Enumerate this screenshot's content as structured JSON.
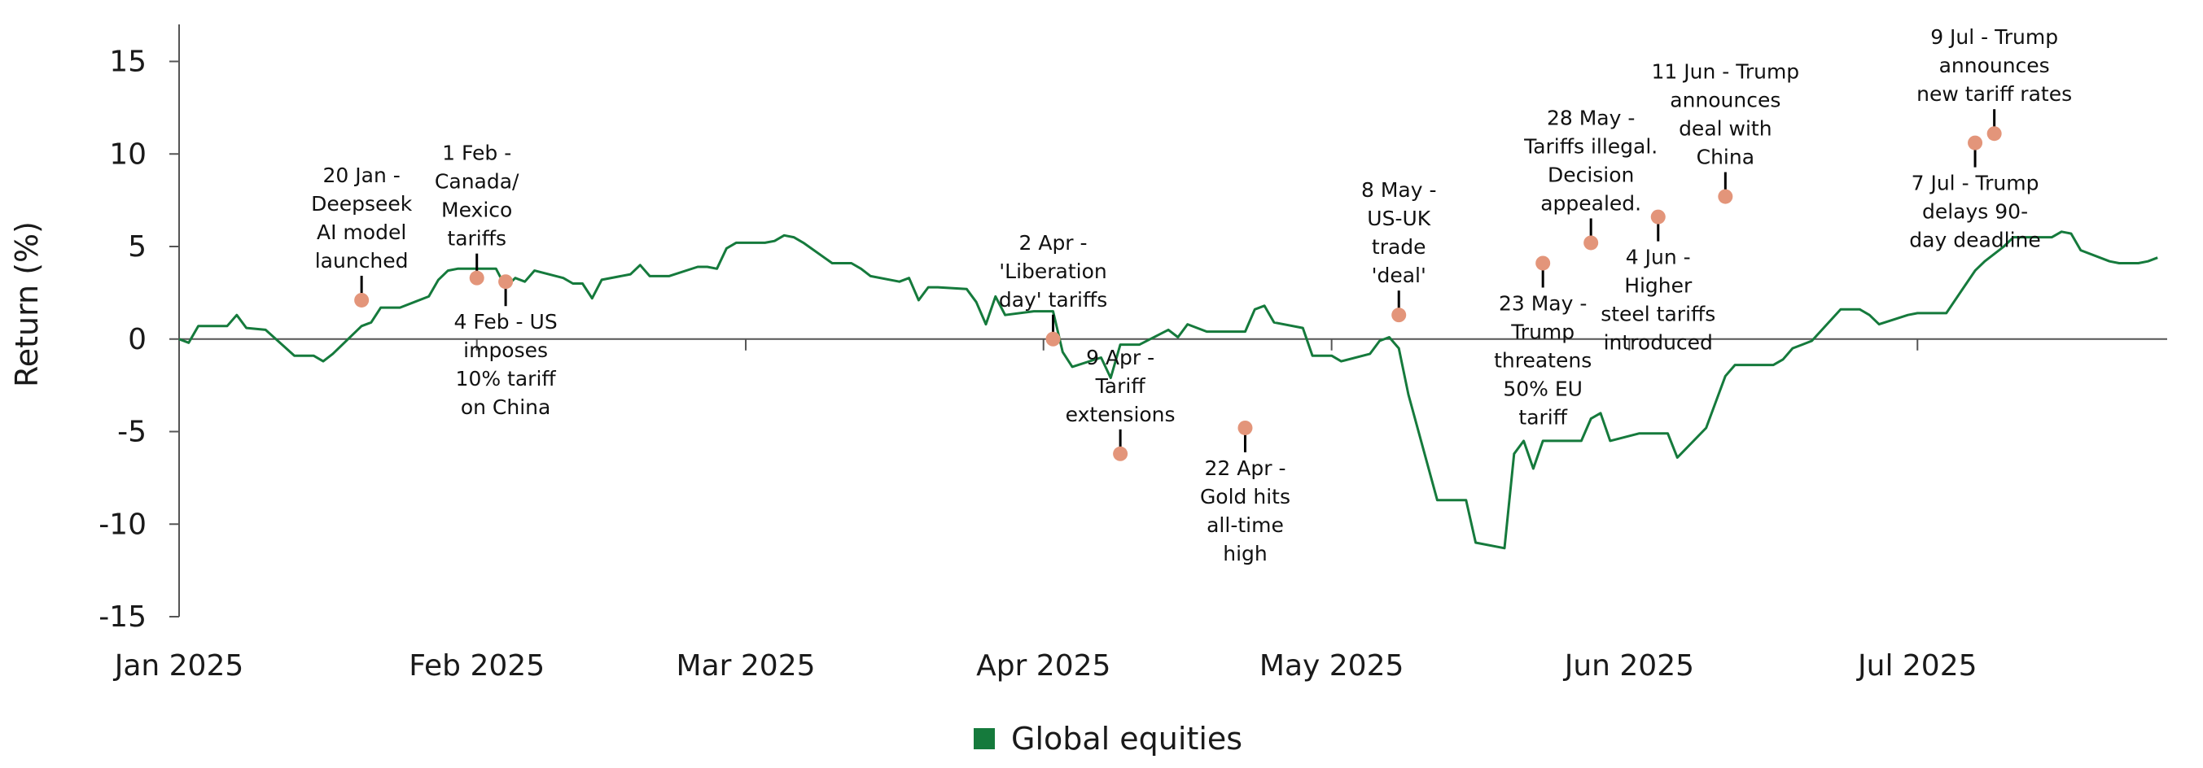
{
  "colors": {
    "series": "#157a3c",
    "marker": "#e3957a",
    "axis": "#555555",
    "text": "#1a1a1a"
  },
  "chart_data": {
    "type": "line",
    "title": "",
    "xlabel": "",
    "ylabel": "Return (%)",
    "ylim": [
      -15,
      17
    ],
    "yticks": [
      15,
      10,
      5,
      0,
      -5,
      -10,
      -15
    ],
    "xlim": [
      "2025-01-01",
      "2025-07-27"
    ],
    "xticks": [
      {
        "date": "2025-01-01",
        "label": "Jan 2025"
      },
      {
        "date": "2025-02-01",
        "label": "Feb 2025"
      },
      {
        "date": "2025-03-01",
        "label": "Mar 2025"
      },
      {
        "date": "2025-04-01",
        "label": "Apr 2025"
      },
      {
        "date": "2025-05-01",
        "label": "May 2025"
      },
      {
        "date": "2025-06-01",
        "label": "Jun 2025"
      },
      {
        "date": "2025-07-01",
        "label": "Jul 2025"
      }
    ],
    "grid": false,
    "legend": "bottom-center",
    "series": [
      {
        "name": "Global equities",
        "points": [
          [
            "2025-01-01",
            0.0
          ],
          [
            "2025-01-02",
            -0.2
          ],
          [
            "2025-01-03",
            0.7
          ],
          [
            "2025-01-06",
            0.7
          ],
          [
            "2025-01-07",
            1.3
          ],
          [
            "2025-01-08",
            0.6
          ],
          [
            "2025-01-10",
            0.5
          ],
          [
            "2025-01-13",
            -0.9
          ],
          [
            "2025-01-14",
            -0.9
          ],
          [
            "2025-01-15",
            -0.9
          ],
          [
            "2025-01-16",
            -1.2
          ],
          [
            "2025-01-17",
            -0.8
          ],
          [
            "2025-01-20",
            0.7
          ],
          [
            "2025-01-21",
            0.9
          ],
          [
            "2025-01-22",
            1.7
          ],
          [
            "2025-01-23",
            1.7
          ],
          [
            "2025-01-24",
            1.7
          ],
          [
            "2025-01-27",
            2.3
          ],
          [
            "2025-01-28",
            3.2
          ],
          [
            "2025-01-29",
            3.7
          ],
          [
            "2025-01-30",
            3.8
          ],
          [
            "2025-01-31",
            3.8
          ],
          [
            "2025-02-03",
            3.8
          ],
          [
            "2025-02-04",
            2.8
          ],
          [
            "2025-02-05",
            3.3
          ],
          [
            "2025-02-06",
            3.1
          ],
          [
            "2025-02-07",
            3.7
          ],
          [
            "2025-02-10",
            3.3
          ],
          [
            "2025-02-11",
            3.0
          ],
          [
            "2025-02-12",
            3.0
          ],
          [
            "2025-02-13",
            2.2
          ],
          [
            "2025-02-14",
            3.2
          ],
          [
            "2025-02-17",
            3.5
          ],
          [
            "2025-02-18",
            4.0
          ],
          [
            "2025-02-19",
            3.4
          ],
          [
            "2025-02-20",
            3.4
          ],
          [
            "2025-02-21",
            3.4
          ],
          [
            "2025-02-24",
            3.9
          ],
          [
            "2025-02-25",
            3.9
          ],
          [
            "2025-02-26",
            3.8
          ],
          [
            "2025-02-27",
            4.9
          ],
          [
            "2025-02-28",
            5.2
          ],
          [
            "2025-03-03",
            5.2
          ],
          [
            "2025-03-04",
            5.3
          ],
          [
            "2025-03-05",
            5.6
          ],
          [
            "2025-03-06",
            5.5
          ],
          [
            "2025-03-07",
            5.2
          ],
          [
            "2025-03-10",
            4.1
          ],
          [
            "2025-03-11",
            4.1
          ],
          [
            "2025-03-12",
            4.1
          ],
          [
            "2025-03-13",
            3.8
          ],
          [
            "2025-03-14",
            3.4
          ],
          [
            "2025-03-17",
            3.1
          ],
          [
            "2025-03-18",
            3.3
          ],
          [
            "2025-03-19",
            2.1
          ],
          [
            "2025-03-20",
            2.8
          ],
          [
            "2025-03-21",
            2.8
          ],
          [
            "2025-03-24",
            2.7
          ],
          [
            "2025-03-25",
            2.0
          ],
          [
            "2025-03-26",
            0.8
          ],
          [
            "2025-03-27",
            2.3
          ],
          [
            "2025-03-28",
            1.3
          ],
          [
            "2025-03-31",
            1.5
          ],
          [
            "2025-04-01",
            1.5
          ],
          [
            "2025-04-02",
            1.5
          ],
          [
            "2025-04-03",
            -0.7
          ],
          [
            "2025-04-04",
            -1.5
          ],
          [
            "2025-04-07",
            -1.0
          ],
          [
            "2025-04-08",
            -2.1
          ],
          [
            "2025-04-09",
            -0.3
          ],
          [
            "2025-04-10",
            -0.3
          ],
          [
            "2025-04-11",
            -0.3
          ],
          [
            "2025-04-14",
            0.5
          ],
          [
            "2025-04-15",
            0.1
          ],
          [
            "2025-04-16",
            0.8
          ],
          [
            "2025-04-17",
            0.6
          ],
          [
            "2025-04-18",
            0.4
          ],
          [
            "2025-04-21",
            0.4
          ],
          [
            "2025-04-22",
            0.4
          ],
          [
            "2025-04-23",
            1.6
          ],
          [
            "2025-04-24",
            1.8
          ],
          [
            "2025-04-25",
            0.9
          ],
          [
            "2025-04-28",
            0.6
          ],
          [
            "2025-04-29",
            -0.9
          ],
          [
            "2025-04-30",
            -0.9
          ],
          [
            "2025-05-01",
            -0.9
          ],
          [
            "2025-05-02",
            -1.2
          ],
          [
            "2025-05-05",
            -0.8
          ],
          [
            "2025-05-06",
            -0.1
          ],
          [
            "2025-05-07",
            0.1
          ],
          [
            "2025-05-08",
            -0.5
          ],
          [
            "2025-05-09",
            -3.0
          ],
          [
            "2025-05-12",
            -8.7
          ],
          [
            "2025-05-13",
            -8.7
          ],
          [
            "2025-05-14",
            -8.7
          ],
          [
            "2025-05-15",
            -8.7
          ],
          [
            "2025-05-16",
            -11.0
          ],
          [
            "2025-05-19",
            -11.3
          ],
          [
            "2025-05-20",
            -6.2
          ],
          [
            "2025-05-21",
            -5.5
          ],
          [
            "2025-05-22",
            -7.0
          ],
          [
            "2025-05-23",
            -5.5
          ],
          [
            "2025-05-26",
            -5.5
          ],
          [
            "2025-05-27",
            -5.5
          ],
          [
            "2025-05-28",
            -4.3
          ],
          [
            "2025-05-29",
            -4.0
          ],
          [
            "2025-05-30",
            -5.5
          ],
          [
            "2025-06-02",
            -5.1
          ],
          [
            "2025-06-03",
            -5.1
          ],
          [
            "2025-06-04",
            -5.1
          ],
          [
            "2025-06-05",
            -5.1
          ],
          [
            "2025-06-06",
            -6.4
          ],
          [
            "2025-06-09",
            -4.8
          ],
          [
            "2025-06-10",
            -3.4
          ],
          [
            "2025-06-11",
            -2.0
          ],
          [
            "2025-06-12",
            -1.4
          ],
          [
            "2025-06-13",
            -1.4
          ],
          [
            "2025-06-16",
            -1.4
          ],
          [
            "2025-06-17",
            -1.1
          ],
          [
            "2025-06-18",
            -0.5
          ],
          [
            "2025-06-19",
            -0.3
          ],
          [
            "2025-06-20",
            -0.1
          ],
          [
            "2025-06-23",
            1.6
          ],
          [
            "2025-06-24",
            1.6
          ],
          [
            "2025-06-25",
            1.6
          ],
          [
            "2025-06-26",
            1.3
          ],
          [
            "2025-06-27",
            0.8
          ],
          [
            "2025-06-30",
            1.3
          ],
          [
            "2025-07-01",
            1.4
          ],
          [
            "2025-07-02",
            1.4
          ],
          [
            "2025-07-03",
            1.4
          ],
          [
            "2025-07-04",
            1.4
          ],
          [
            "2025-07-07",
            3.7
          ],
          [
            "2025-07-08",
            4.2
          ],
          [
            "2025-07-09",
            4.6
          ],
          [
            "2025-07-10",
            5.0
          ],
          [
            "2025-07-11",
            5.5
          ],
          [
            "2025-07-14",
            5.5
          ],
          [
            "2025-07-15",
            5.5
          ],
          [
            "2025-07-16",
            5.8
          ],
          [
            "2025-07-17",
            5.7
          ],
          [
            "2025-07-18",
            4.8
          ],
          [
            "2025-07-21",
            4.2
          ],
          [
            "2025-07-22",
            4.1
          ],
          [
            "2025-07-23",
            4.1
          ],
          [
            "2025-07-24",
            4.1
          ],
          [
            "2025-07-25",
            4.2
          ],
          [
            "2025-07-26",
            4.4
          ]
        ]
      }
    ],
    "annotations": [
      {
        "date": "2025-01-20",
        "value": 2.1,
        "lines": [
          "20 Jan -",
          "Deepseek",
          "AI model",
          "launched"
        ],
        "position": "above"
      },
      {
        "date": "2025-02-01",
        "value": 3.3,
        "lines": [
          "1 Feb -",
          "Canada/",
          "Mexico",
          "tariffs"
        ],
        "position": "above"
      },
      {
        "date": "2025-02-04",
        "value": 3.1,
        "lines": [
          "4 Feb - US",
          "imposes",
          "10% tariff",
          "on China"
        ],
        "position": "below"
      },
      {
        "date": "2025-04-02",
        "value": 0.0,
        "lines": [
          "2 Apr -",
          "'Liberation",
          "day' tariffs"
        ],
        "position": "above"
      },
      {
        "date": "2025-04-09",
        "value": -6.2,
        "lines": [
          "9 Apr -",
          "Tariff",
          "extensions"
        ],
        "position": "above"
      },
      {
        "date": "2025-04-22",
        "value": -4.8,
        "lines": [
          "22 Apr -",
          "Gold hits",
          "all-time",
          "high"
        ],
        "position": "below"
      },
      {
        "date": "2025-05-08",
        "value": 1.3,
        "lines": [
          "8 May -",
          "US-UK",
          "trade",
          "'deal'"
        ],
        "position": "above"
      },
      {
        "date": "2025-05-23",
        "value": 4.1,
        "lines": [
          "23 May -",
          "Trump",
          "threatens",
          "50% EU",
          "tariff"
        ],
        "position": "below"
      },
      {
        "date": "2025-05-28",
        "value": 5.2,
        "lines": [
          "28 May -",
          "Tariffs illegal.",
          "Decision",
          "appealed."
        ],
        "position": "above"
      },
      {
        "date": "2025-06-04",
        "value": 6.6,
        "lines": [
          "4 Jun -",
          "Higher",
          "steel tariffs",
          "introduced"
        ],
        "position": "below"
      },
      {
        "date": "2025-06-11",
        "value": 7.7,
        "lines": [
          "11 Jun - Trump",
          "announces",
          "deal with",
          "China"
        ],
        "position": "above"
      },
      {
        "date": "2025-07-07",
        "value": 10.6,
        "lines": [
          "7 Jul - Trump",
          "delays 90-",
          "day deadline"
        ],
        "position": "below"
      },
      {
        "date": "2025-07-09",
        "value": 11.1,
        "lines": [
          "9 Jul - Trump",
          "announces",
          "new tariff rates"
        ],
        "position": "above"
      }
    ]
  }
}
